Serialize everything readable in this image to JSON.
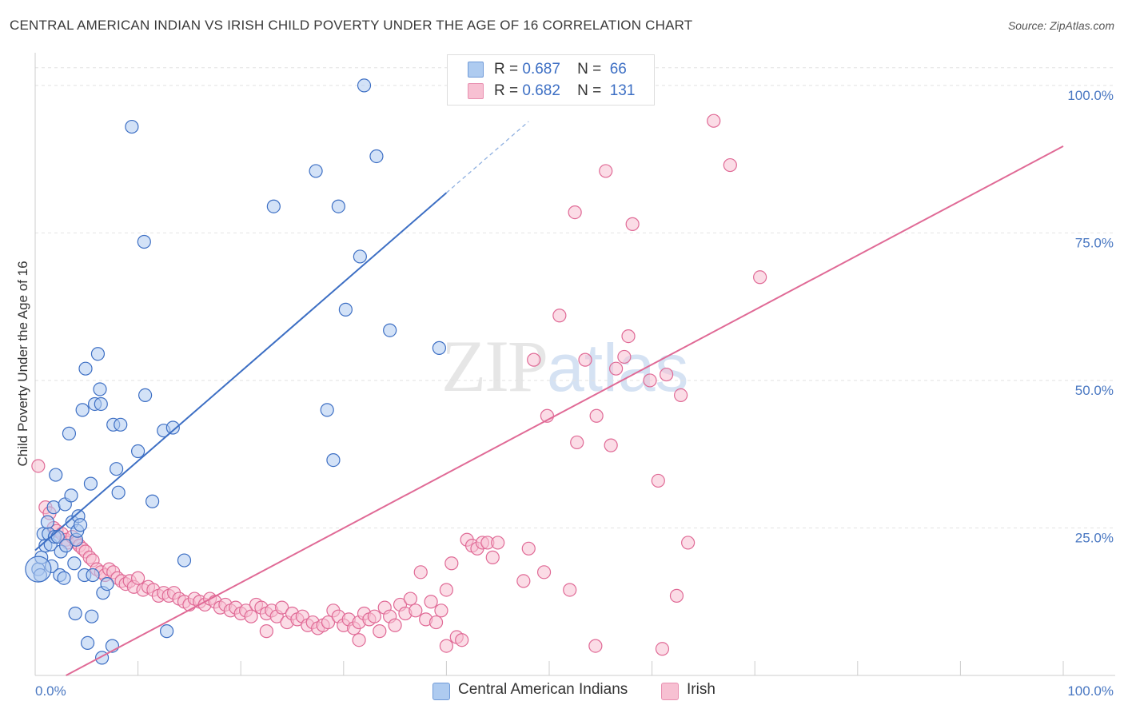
{
  "title": "CENTRAL AMERICAN INDIAN VS IRISH CHILD POVERTY UNDER THE AGE OF 16 CORRELATION CHART",
  "source": "Source: ZipAtlas.com",
  "watermark": {
    "zip": "ZIP",
    "atlas": "atlas"
  },
  "legend": {
    "r_label": "R =",
    "n_label": "N =",
    "series": [
      {
        "r": "0.687",
        "n": "66"
      },
      {
        "r": "0.682",
        "n": "131"
      }
    ]
  },
  "chart_data": {
    "type": "scatter",
    "title": "CENTRAL AMERICAN INDIAN VS IRISH CHILD POVERTY UNDER THE AGE OF 16 CORRELATION CHART",
    "xlabel": "",
    "ylabel": "Child Poverty Under the Age of 16",
    "xlim": [
      0,
      100
    ],
    "ylim": [
      0,
      105
    ],
    "x_tick_labels": [
      "0.0%",
      "100.0%"
    ],
    "y_tick_labels": [
      "25.0%",
      "50.0%",
      "75.0%",
      "100.0%"
    ],
    "y_ticks": [
      25,
      50,
      75,
      100
    ],
    "colors": {
      "series1": "#3d6fc4",
      "series1_fill": "#aecbf0",
      "series2": "#e06a96",
      "series2_fill": "#f7c0d2",
      "grid": "#e2e2e2",
      "axis_label": "#4a78c2"
    },
    "series": [
      {
        "name": "Central American Indians",
        "r": 0.687,
        "n": 66,
        "trend": {
          "x0": 0,
          "y0": 21.2,
          "x1": 40,
          "y1": 81.8,
          "dash_to_x": 48,
          "dash_to_y": 93.9
        },
        "points": [
          [
            0.3,
            18.0
          ],
          [
            0.5,
            17.0
          ],
          [
            0.6,
            20.0
          ],
          [
            0.8,
            24.0
          ],
          [
            1.0,
            22.0
          ],
          [
            1.3,
            24.0
          ],
          [
            1.5,
            22.2
          ],
          [
            1.6,
            18.5
          ],
          [
            1.8,
            28.5
          ],
          [
            1.9,
            23.5
          ],
          [
            2.0,
            34.0
          ],
          [
            2.2,
            23.5
          ],
          [
            2.4,
            17.0
          ],
          [
            2.5,
            21.0
          ],
          [
            2.8,
            16.5
          ],
          [
            2.9,
            29.0
          ],
          [
            3.0,
            22.0
          ],
          [
            3.3,
            41.0
          ],
          [
            3.5,
            30.5
          ],
          [
            3.6,
            26.0
          ],
          [
            3.8,
            19.0
          ],
          [
            3.9,
            10.5
          ],
          [
            4.0,
            23.0
          ],
          [
            4.1,
            24.5
          ],
          [
            4.2,
            27.0
          ],
          [
            4.4,
            25.5
          ],
          [
            4.6,
            45.0
          ],
          [
            4.8,
            17.0
          ],
          [
            4.9,
            52.0
          ],
          [
            5.1,
            5.5
          ],
          [
            5.4,
            32.5
          ],
          [
            5.5,
            10.0
          ],
          [
            5.6,
            17.0
          ],
          [
            5.8,
            46.0
          ],
          [
            6.1,
            54.5
          ],
          [
            6.3,
            48.5
          ],
          [
            6.4,
            46.0
          ],
          [
            6.6,
            14.0
          ],
          [
            7.0,
            15.5
          ],
          [
            7.5,
            5.0
          ],
          [
            7.6,
            42.5
          ],
          [
            7.9,
            35.0
          ],
          [
            8.1,
            31.0
          ],
          [
            8.3,
            42.5
          ],
          [
            9.4,
            93.0
          ],
          [
            10.0,
            38.0
          ],
          [
            10.6,
            73.5
          ],
          [
            10.7,
            47.5
          ],
          [
            11.4,
            29.5
          ],
          [
            12.5,
            41.5
          ],
          [
            12.8,
            7.5
          ],
          [
            13.4,
            42.0
          ],
          [
            14.5,
            19.5
          ],
          [
            23.2,
            79.5
          ],
          [
            27.3,
            85.5
          ],
          [
            28.4,
            45.0
          ],
          [
            29.0,
            36.5
          ],
          [
            29.5,
            79.5
          ],
          [
            30.2,
            62.0
          ],
          [
            31.6,
            71.0
          ],
          [
            32.0,
            100.0
          ],
          [
            33.2,
            88.0
          ],
          [
            34.5,
            58.5
          ],
          [
            39.3,
            55.5
          ],
          [
            6.5,
            3.0
          ],
          [
            1.2,
            26.0
          ]
        ]
      },
      {
        "name": "Irish",
        "r": 0.682,
        "n": 131,
        "trend": {
          "x0": 3,
          "y0": 0,
          "x1": 100,
          "y1": 89.7
        },
        "points": [
          [
            0.3,
            35.5
          ],
          [
            1.0,
            28.5
          ],
          [
            1.4,
            27.5
          ],
          [
            1.8,
            25.0
          ],
          [
            2.1,
            24.5
          ],
          [
            2.6,
            24.0
          ],
          [
            3.0,
            23.0
          ],
          [
            3.2,
            22.5
          ],
          [
            3.6,
            23.5
          ],
          [
            4.0,
            22.5
          ],
          [
            4.3,
            22.0
          ],
          [
            4.6,
            21.5
          ],
          [
            4.9,
            21.0
          ],
          [
            5.3,
            20.0
          ],
          [
            5.6,
            19.5
          ],
          [
            6.0,
            18.0
          ],
          [
            6.4,
            17.5
          ],
          [
            6.8,
            17.0
          ],
          [
            7.2,
            18.0
          ],
          [
            7.6,
            17.5
          ],
          [
            8.0,
            16.5
          ],
          [
            8.4,
            16.0
          ],
          [
            8.8,
            15.5
          ],
          [
            9.2,
            16.0
          ],
          [
            9.6,
            15.0
          ],
          [
            10.0,
            16.5
          ],
          [
            10.5,
            14.5
          ],
          [
            11.0,
            15.0
          ],
          [
            11.5,
            14.5
          ],
          [
            12.0,
            13.5
          ],
          [
            12.5,
            14.0
          ],
          [
            13.0,
            13.5
          ],
          [
            13.5,
            14.0
          ],
          [
            14.0,
            13.0
          ],
          [
            14.5,
            12.5
          ],
          [
            15.0,
            12.0
          ],
          [
            15.5,
            13.0
          ],
          [
            16.0,
            12.5
          ],
          [
            16.5,
            12.0
          ],
          [
            17.0,
            13.0
          ],
          [
            17.5,
            12.5
          ],
          [
            18.0,
            11.5
          ],
          [
            18.5,
            12.0
          ],
          [
            19.0,
            11.0
          ],
          [
            19.5,
            11.5
          ],
          [
            20.0,
            10.5
          ],
          [
            20.5,
            11.0
          ],
          [
            21.0,
            10.0
          ],
          [
            21.5,
            12.0
          ],
          [
            22.0,
            11.5
          ],
          [
            22.5,
            10.5
          ],
          [
            23.0,
            11.0
          ],
          [
            23.5,
            10.0
          ],
          [
            24.0,
            11.5
          ],
          [
            24.5,
            9.0
          ],
          [
            25.0,
            10.5
          ],
          [
            25.5,
            9.5
          ],
          [
            26.0,
            10.0
          ],
          [
            26.5,
            8.5
          ],
          [
            27.0,
            9.0
          ],
          [
            27.5,
            8.0
          ],
          [
            28.0,
            8.5
          ],
          [
            28.5,
            9.0
          ],
          [
            29.0,
            11.0
          ],
          [
            29.5,
            10.0
          ],
          [
            30.0,
            8.5
          ],
          [
            30.5,
            9.5
          ],
          [
            31.0,
            8.0
          ],
          [
            31.5,
            9.0
          ],
          [
            32.0,
            10.5
          ],
          [
            32.5,
            9.5
          ],
          [
            33.0,
            10.0
          ],
          [
            33.5,
            7.5
          ],
          [
            34.0,
            11.5
          ],
          [
            34.5,
            10.0
          ],
          [
            35.0,
            8.5
          ],
          [
            35.5,
            12.0
          ],
          [
            36.0,
            10.5
          ],
          [
            36.5,
            13.0
          ],
          [
            37.0,
            11.0
          ],
          [
            38.0,
            9.5
          ],
          [
            38.5,
            12.5
          ],
          [
            39.0,
            9.0
          ],
          [
            39.5,
            11.0
          ],
          [
            40.0,
            5.0
          ],
          [
            40.5,
            19.0
          ],
          [
            41.0,
            6.5
          ],
          [
            41.5,
            6.0
          ],
          [
            42.0,
            23.0
          ],
          [
            42.5,
            22.0
          ],
          [
            43.0,
            21.5
          ],
          [
            43.5,
            22.5
          ],
          [
            44.0,
            22.5
          ],
          [
            44.5,
            20.0
          ],
          [
            45.0,
            22.5
          ],
          [
            22.5,
            7.5
          ],
          [
            31.5,
            6.0
          ],
          [
            37.5,
            17.5
          ],
          [
            40.0,
            14.5
          ],
          [
            47.5,
            16.0
          ],
          [
            48.0,
            21.5
          ],
          [
            49.5,
            17.5
          ],
          [
            48.5,
            53.5
          ],
          [
            49.8,
            44.0
          ],
          [
            51.0,
            61.0
          ],
          [
            52.0,
            14.5
          ],
          [
            52.5,
            78.5
          ],
          [
            52.7,
            39.5
          ],
          [
            53.5,
            53.5
          ],
          [
            54.5,
            5.0
          ],
          [
            54.6,
            44.0
          ],
          [
            56.0,
            39.0
          ],
          [
            56.5,
            52.0
          ],
          [
            57.3,
            54.0
          ],
          [
            57.7,
            57.5
          ],
          [
            58.1,
            76.5
          ],
          [
            59.8,
            50.0
          ],
          [
            60.6,
            33.0
          ],
          [
            61.0,
            4.5
          ],
          [
            61.4,
            51.0
          ],
          [
            62.4,
            13.5
          ],
          [
            62.8,
            47.5
          ],
          [
            63.5,
            22.5
          ],
          [
            66.0,
            94.0
          ],
          [
            67.6,
            86.5
          ],
          [
            70.5,
            67.5
          ],
          [
            55.5,
            85.5
          ]
        ]
      }
    ]
  },
  "bottom_legend": [
    {
      "label": "Central American Indians"
    },
    {
      "label": "Irish"
    }
  ]
}
